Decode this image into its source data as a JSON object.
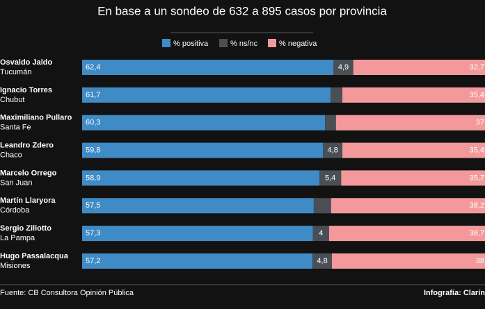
{
  "chart_data": {
    "type": "stacked-bar-horizontal",
    "title": "En base a un sondeo de 632 a 895 casos por provincia",
    "categories": [
      "Osvaldo Jaldo",
      "Ignacio Torres",
      "Maximiliano Pullaro",
      "Leandro Zdero",
      "Marcelo Orrego",
      "Martín Llaryora",
      "Sergio Ziliotto",
      "Hugo Passalacqua"
    ],
    "provinces": [
      "Tucumán",
      "Chubut",
      "Santa Fe",
      "Chaco",
      "San Juan",
      "Córdoba",
      "La Pampa",
      "Misiones"
    ],
    "xlim": [
      0,
      100
    ],
    "series": [
      {
        "name": "% positiva",
        "color": "#3f8bc6",
        "values": [
          62.4,
          61.7,
          60.3,
          59.8,
          58.9,
          57.5,
          57.3,
          57.2
        ],
        "value_labels": [
          "62,4",
          "61,7",
          "60,3",
          "59,8",
          "58,9",
          "57,5",
          "57,3",
          "57,2"
        ]
      },
      {
        "name": "% ns/nc",
        "color": "#4a4f55",
        "values": [
          4.9,
          2.9,
          2.7,
          4.8,
          5.4,
          4.3,
          4,
          4.8
        ],
        "value_labels": [
          "4,9",
          null,
          null,
          "4,8",
          "5,4",
          null,
          "4",
          "4,8"
        ]
      },
      {
        "name": "% negativa",
        "color": "#f4999b",
        "values": [
          32.7,
          35.4,
          37,
          35.4,
          35.7,
          38.2,
          38.7,
          38
        ],
        "value_labels": [
          "32,7",
          "35,4",
          "37",
          "35,4",
          "35,7",
          "38,2",
          "38,7",
          "38"
        ]
      }
    ],
    "source": "Fuente: CB Consultora Opinión Pública",
    "credit": "Infografía: Clarín"
  }
}
